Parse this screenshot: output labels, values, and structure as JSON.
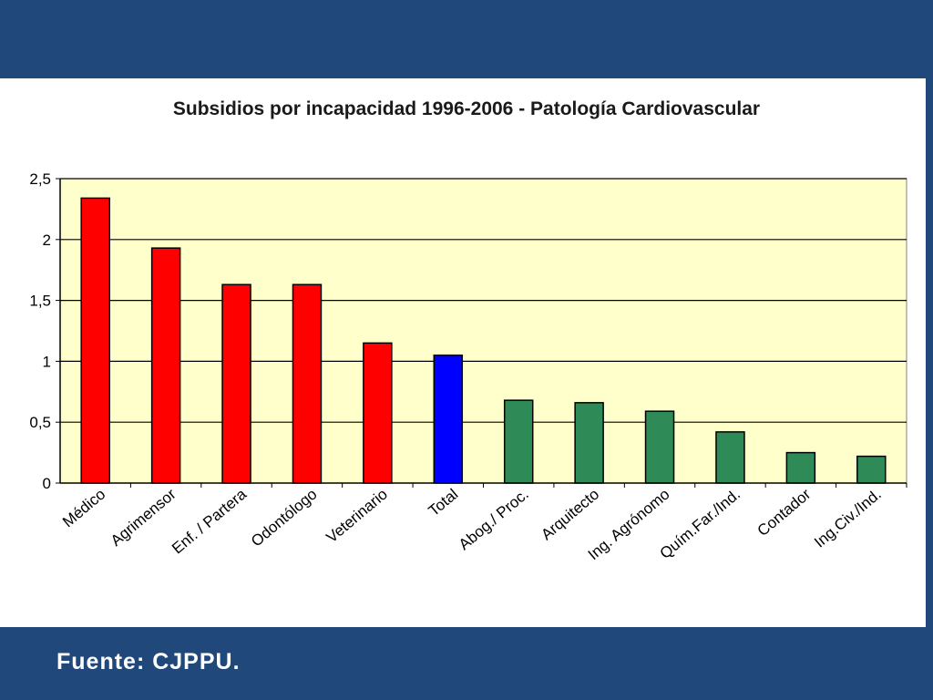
{
  "slide": {
    "source": "Fuente: CJPPU.",
    "colors": {
      "frame": "#21487a",
      "panel": "#ffffff",
      "plot_background": "#ffffcc",
      "highlight_above_total": "#ff0000",
      "total": "#0000ff",
      "below_total": "#2e8b57"
    }
  },
  "chart_data": {
    "type": "bar",
    "title": "Subsidios por incapacidad 1996-2006 - Patología Cardiovascular",
    "xlabel": "",
    "ylabel": "",
    "ylim": [
      0,
      2.5
    ],
    "yticks": [
      "0",
      "0,5",
      "1",
      "1,5",
      "2",
      "2,5"
    ],
    "ytick_values": [
      0,
      0.5,
      1,
      1.5,
      2,
      2.5
    ],
    "grid": true,
    "legend": "none",
    "categories": [
      "Médico",
      "Agrimensor",
      "Enf. / Partera",
      "Odontólogo",
      "Veterinario",
      "Total",
      "Abog./ Proc.",
      "Arquitecto",
      "Ing. Agrónomo",
      "Quím.Far./Ind.",
      "Contador",
      "Ing.Civ./Ind."
    ],
    "values": [
      2.34,
      1.93,
      1.63,
      1.63,
      1.15,
      1.05,
      0.68,
      0.66,
      0.59,
      0.42,
      0.25,
      0.22
    ],
    "bar_colors": [
      "#ff0000",
      "#ff0000",
      "#ff0000",
      "#ff0000",
      "#ff0000",
      "#0000ff",
      "#2e8b57",
      "#2e8b57",
      "#2e8b57",
      "#2e8b57",
      "#2e8b57",
      "#2e8b57"
    ]
  }
}
